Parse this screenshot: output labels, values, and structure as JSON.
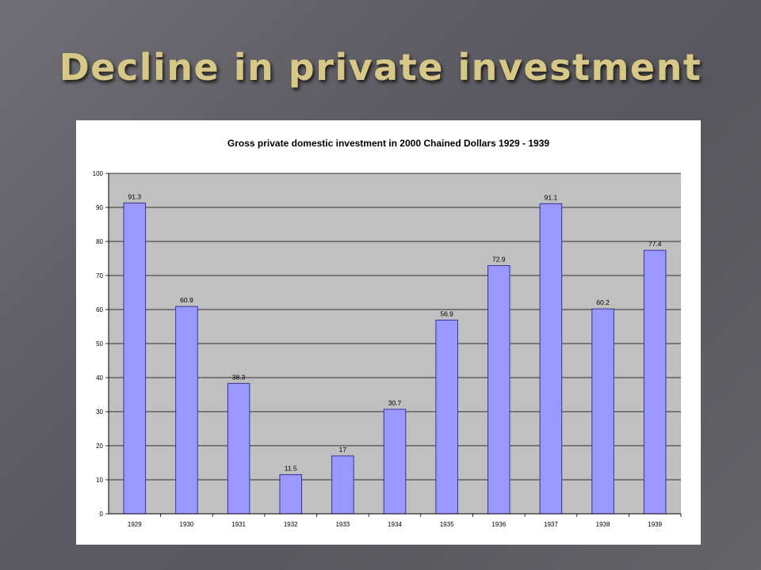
{
  "slide": {
    "title": "Decline in private investment"
  },
  "colors": {
    "bar_fill": "#9999ff",
    "bar_stroke": "#333399",
    "plot_background": "#c0c0c0",
    "gridline": "#000000",
    "title_color": "#d8c888"
  },
  "chart_data": {
    "type": "bar",
    "title": "Gross private domestic investment in 2000 Chained Dollars 1929 - 1939",
    "xlabel": "",
    "ylabel": "",
    "categories": [
      "1929",
      "1930",
      "1931",
      "1932",
      "1933",
      "1934",
      "1935",
      "1936",
      "1937",
      "1938",
      "1939"
    ],
    "values": [
      91.3,
      60.9,
      38.3,
      11.5,
      17,
      30.7,
      56.9,
      72.9,
      91.1,
      60.2,
      77.4
    ],
    "data_labels": [
      "91.3",
      "60.9",
      "38.3",
      "11.5",
      "17",
      "30.7",
      "56.9",
      "72.9",
      "91.1",
      "60.2",
      "77.4"
    ],
    "ylim": [
      0,
      100
    ],
    "yticks": [
      0,
      10,
      20,
      30,
      40,
      50,
      60,
      70,
      80,
      90,
      100
    ],
    "grid": true,
    "legend": "none"
  }
}
